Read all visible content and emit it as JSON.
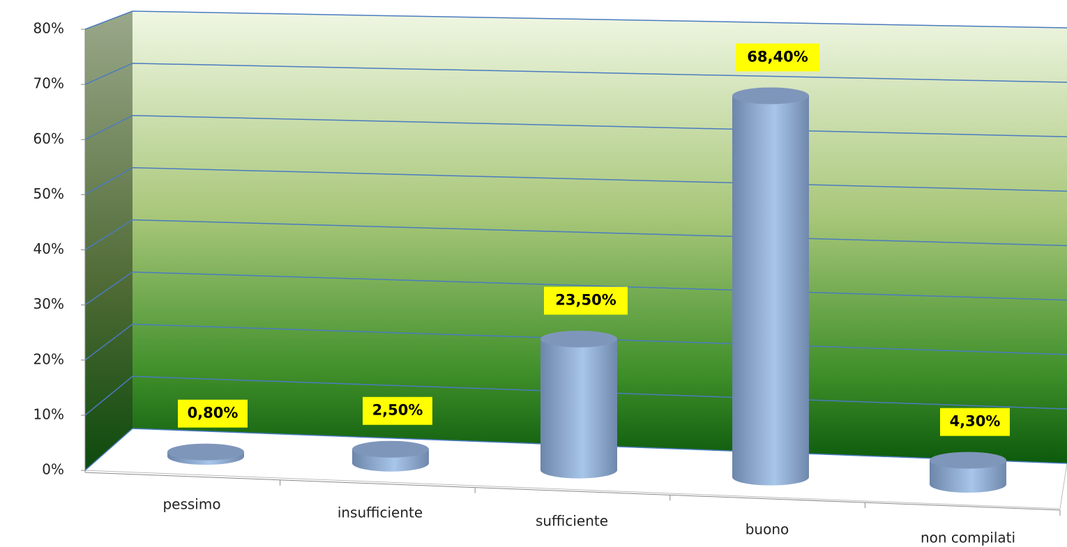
{
  "chart_data": {
    "type": "bar",
    "categories": [
      "pessimo",
      "insufficiente",
      "sufficiente",
      "buono",
      "non compilati"
    ],
    "values": [
      0.8,
      2.5,
      23.5,
      68.4,
      4.3
    ],
    "value_labels": [
      "0,80%",
      "2,50%",
      "23,50%",
      "68,40%",
      "4,30%"
    ],
    "color": "#8fb0d8",
    "ylim": [
      0,
      80
    ],
    "yticks": [
      {
        "value": 0,
        "label": "0%"
      },
      {
        "value": 10,
        "label": "10%"
      },
      {
        "value": 20,
        "label": "20%"
      },
      {
        "value": 30,
        "label": "30%"
      },
      {
        "value": 40,
        "label": "40%"
      },
      {
        "value": 50,
        "label": "50%"
      },
      {
        "value": 60,
        "label": "60%"
      },
      {
        "value": 70,
        "label": "70%"
      },
      {
        "value": 80,
        "label": "80%"
      }
    ],
    "grid": true
  }
}
